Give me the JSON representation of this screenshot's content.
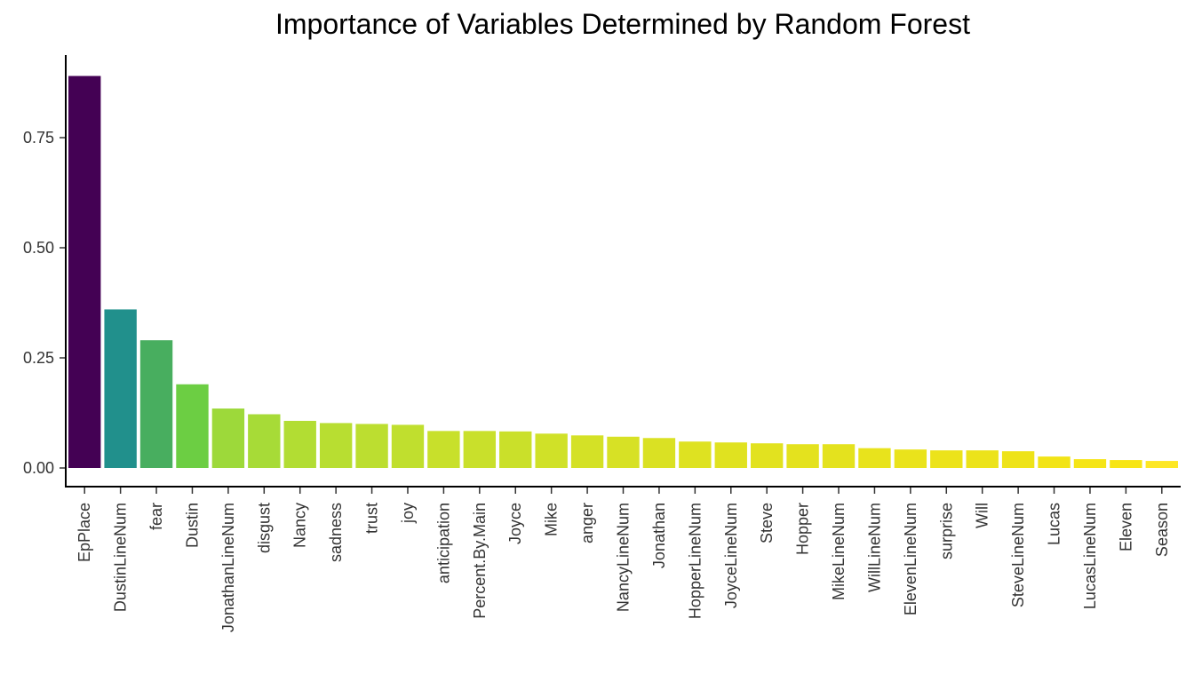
{
  "chart_data": {
    "type": "bar",
    "title": "Importance of Variables Determined by Random Forest",
    "xlabel": "",
    "ylabel": "",
    "ylim": [
      0,
      0.94
    ],
    "yticks": [
      0.0,
      0.25,
      0.5,
      0.75
    ],
    "ytick_labels": [
      "0.00",
      "0.25",
      "0.50",
      "0.75"
    ],
    "grid": false,
    "legend": "none",
    "categories": [
      "EpPlace",
      "DustinLineNum",
      "fear",
      "Dustin",
      "JonathanLineNum",
      "disgust",
      "Nancy",
      "sadness",
      "trust",
      "joy",
      "anticipation",
      "Percent.By.Main",
      "Joyce",
      "Mike",
      "anger",
      "NancyLineNum",
      "Jonathan",
      "HopperLineNum",
      "JoyceLineNum",
      "Steve",
      "Hopper",
      "MikeLineNum",
      "WillLineNum",
      "ElevenLineNum",
      "surprise",
      "Will",
      "SteveLineNum",
      "Lucas",
      "LucasLineNum",
      "Eleven",
      "Season"
    ],
    "values": [
      0.89,
      0.36,
      0.29,
      0.19,
      0.135,
      0.122,
      0.107,
      0.102,
      0.1,
      0.098,
      0.084,
      0.084,
      0.083,
      0.078,
      0.074,
      0.071,
      0.068,
      0.06,
      0.058,
      0.056,
      0.054,
      0.054,
      0.045,
      0.042,
      0.04,
      0.04,
      0.038,
      0.026,
      0.02,
      0.018,
      0.016
    ],
    "colors": [
      "#440154",
      "#21908C",
      "#48AE5F",
      "#6CCE43",
      "#9DD93A",
      "#A7DB37",
      "#B2DD33",
      "#B8DE31",
      "#BCDE30",
      "#C0DF2E",
      "#C8E02B",
      "#C9E02B",
      "#CAE02A",
      "#D0E128",
      "#D4E126",
      "#D7E125",
      "#DAE123",
      "#DEE221",
      "#E0E220",
      "#E2E21F",
      "#E4E21E",
      "#E4E21E",
      "#E8E31C",
      "#EAE31B",
      "#ECE31A",
      "#ECE31A",
      "#EEE319",
      "#F2E417",
      "#F5E516",
      "#F7E515",
      "#FDE725"
    ]
  }
}
